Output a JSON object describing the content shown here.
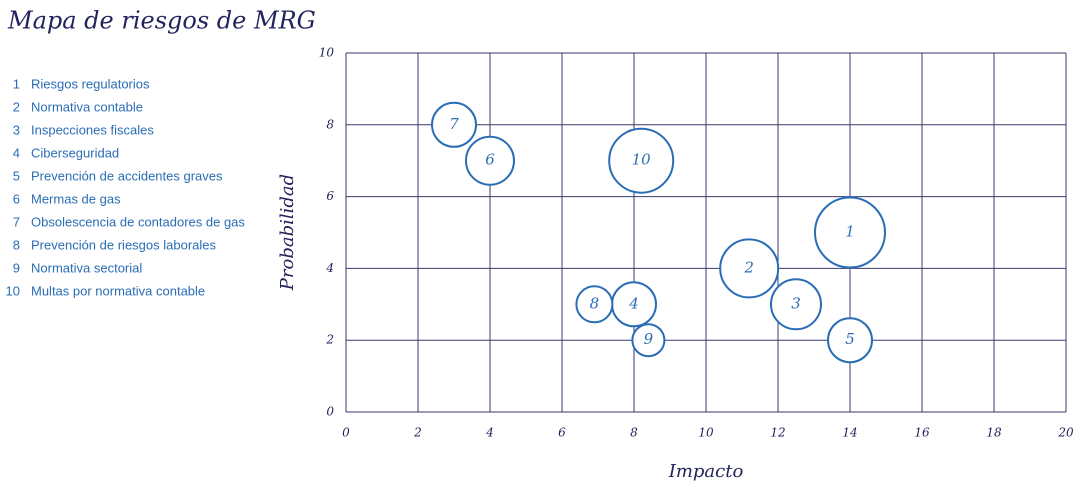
{
  "chart_data": {
    "type": "bubble",
    "title": "Mapa de riesgos de MRG",
    "x_label": "Impacto",
    "y_label": "Probabilidad",
    "xlim": [
      0,
      20
    ],
    "xticks": [
      0,
      2,
      4,
      6,
      8,
      10,
      12,
      14,
      16,
      18,
      20
    ],
    "ylim": [
      0,
      10
    ],
    "yticks": [
      0,
      2,
      4,
      6,
      8,
      10
    ],
    "grid": true,
    "color": "#2a6db5",
    "labels": [
      "1",
      "2",
      "3",
      "4",
      "5",
      "6",
      "7",
      "8",
      "9",
      "10"
    ],
    "names": [
      "Riesgos regulatorios",
      "Normativa contable",
      "Inspecciones fiscales",
      "Ciberseguridad",
      "Prevención de accidentes graves",
      "Mermas de gas",
      "Obsolescencia de contadores de gas",
      "Prevención de riesgos laborales",
      "Normativa sectorial",
      "Multas por normativa contable"
    ],
    "x": [
      14,
      11.2,
      12.5,
      8,
      14,
      4,
      3,
      6.9,
      8.4,
      8.2
    ],
    "values": [
      5,
      4,
      3,
      3,
      2,
      7,
      8,
      3,
      2,
      7
    ],
    "sizes": [
      35,
      29,
      25,
      22,
      22,
      24,
      22,
      18,
      16,
      32
    ]
  }
}
